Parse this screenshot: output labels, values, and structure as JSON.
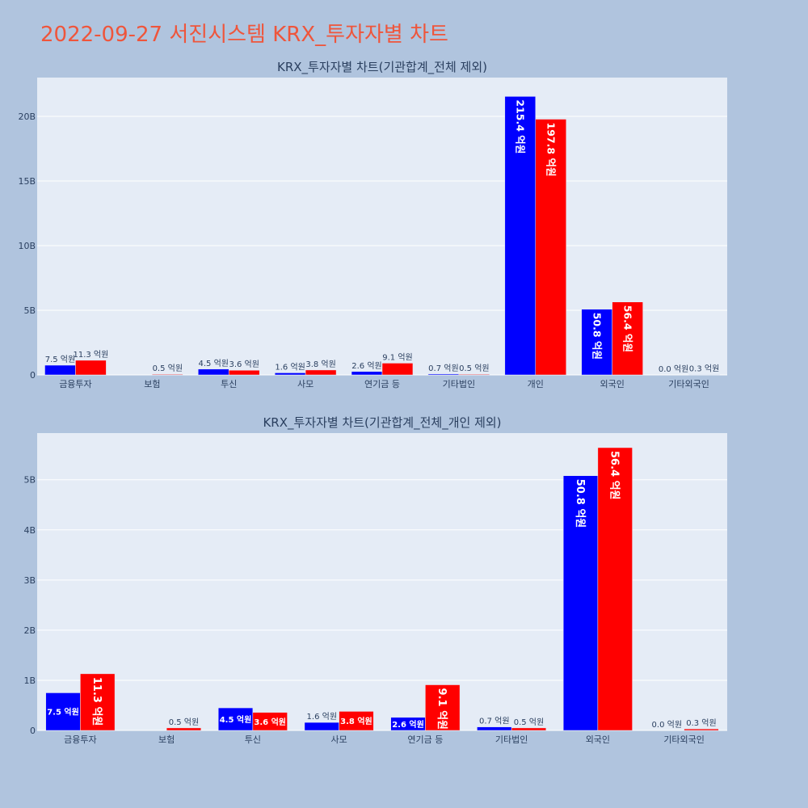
{
  "page_title": "2022-09-27 서진시스템 KRX_투자자별 차트",
  "colors": {
    "series_a": "#0000ff",
    "series_b": "#ff0000",
    "plot_bg": "#e5ecf6",
    "page_bg": "#b0c4de",
    "title": "#ef553b",
    "text": "#2a3f5f"
  },
  "chart_data": [
    {
      "type": "bar",
      "title": "KRX_투자자별 차트(기관합계_전체 제외)",
      "categories": [
        "금융투자",
        "보험",
        "투신",
        "사모",
        "연기금 등",
        "기타법인",
        "개인",
        "외국인",
        "기타외국인"
      ],
      "ylim": [
        0,
        23000000000
      ],
      "yticks": [
        0,
        5000000000,
        10000000000,
        15000000000,
        20000000000
      ],
      "ytick_labels": [
        "0",
        "5B",
        "10B",
        "15B",
        "20B"
      ],
      "grid": true,
      "series": [
        {
          "color": "#0000ff",
          "values": [
            750000000,
            0,
            450000000,
            160000000,
            260000000,
            70000000,
            21540000000,
            5080000000,
            0
          ],
          "labels": [
            "7.5 억원",
            "",
            "4.5 억원",
            "1.6 억원",
            "2.6 억원",
            "0.7 억원",
            "215.4 억원",
            "50.8 억원",
            "0.0 억원"
          ]
        },
        {
          "color": "#ff0000",
          "values": [
            1130000000,
            50000000,
            360000000,
            380000000,
            910000000,
            50000000,
            19780000000,
            5640000000,
            30000000
          ],
          "labels": [
            "11.3 억원",
            "0.5 억원",
            "3.6 억원",
            "3.8 억원",
            "9.1 억원",
            "0.5 억원",
            "197.8 억원",
            "56.4 억원",
            "0.3 억원"
          ]
        }
      ]
    },
    {
      "type": "bar",
      "title": "KRX_투자자별 차트(기관합계_전체_개인 제외)",
      "categories": [
        "금융투자",
        "보험",
        "투신",
        "사모",
        "연기금 등",
        "기타법인",
        "외국인",
        "기타외국인"
      ],
      "ylim": [
        0,
        5930000000
      ],
      "yticks": [
        0,
        1000000000,
        2000000000,
        3000000000,
        4000000000,
        5000000000
      ],
      "ytick_labels": [
        "0",
        "1B",
        "2B",
        "3B",
        "4B",
        "5B"
      ],
      "grid": true,
      "series": [
        {
          "color": "#0000ff",
          "values": [
            750000000,
            0,
            450000000,
            160000000,
            260000000,
            70000000,
            5080000000,
            0
          ],
          "labels": [
            "7.5 억원",
            "",
            "4.5 억원",
            "1.6 억원",
            "2.6 억원",
            "0.7 억원",
            "50.8 억원",
            "0.0 억원"
          ]
        },
        {
          "color": "#ff0000",
          "values": [
            1130000000,
            50000000,
            360000000,
            380000000,
            910000000,
            50000000,
            5640000000,
            30000000
          ],
          "labels": [
            "11.3 억원",
            "0.5 억원",
            "3.6 억원",
            "3.8 억원",
            "9.1 억원",
            "0.5 억원",
            "56.4 억원",
            "0.3 억원"
          ]
        }
      ]
    }
  ]
}
